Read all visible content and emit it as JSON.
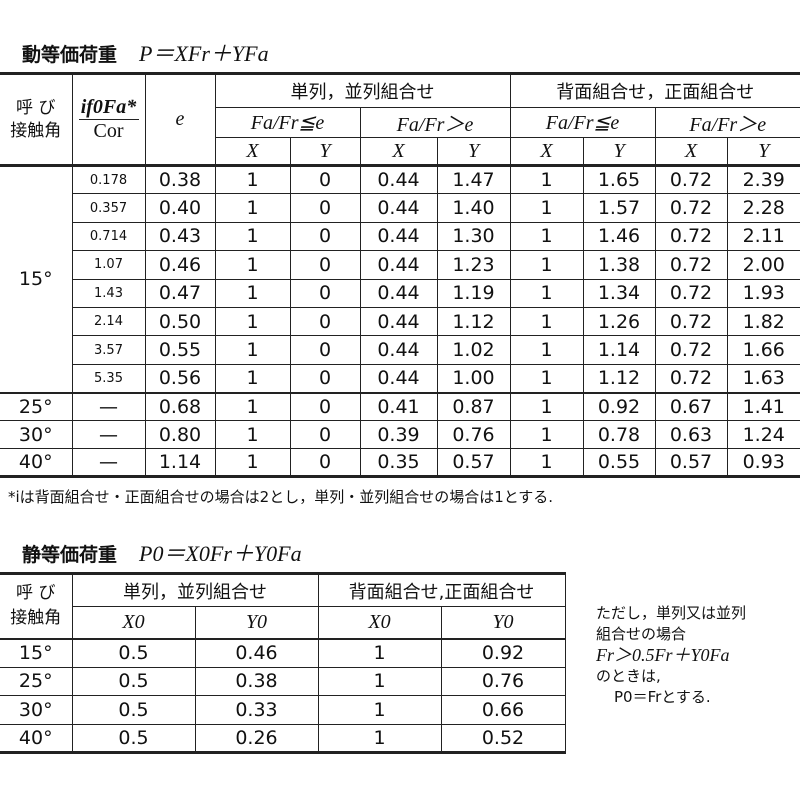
{
  "dynamic": {
    "title": "動等価荷重",
    "formula": "P＝XFr＋YFa",
    "header": {
      "contact_angle": [
        "呼 び",
        "接触角"
      ],
      "ratio_num": "if0Fa*",
      "ratio_den": "Cor",
      "e": "e",
      "group_single": "単列，並列組合せ",
      "group_back": "背面組合せ，正面組合せ",
      "cond_le": "Fa/Fr≦e",
      "cond_gt": "Fa/Fr＞e",
      "x": "X",
      "y": "Y"
    },
    "angle_15": "15°",
    "rows_15": [
      [
        "0.178",
        "0.38",
        "1",
        "0",
        "0.44",
        "1.47",
        "1",
        "1.65",
        "0.72",
        "2.39"
      ],
      [
        "0.357",
        "0.40",
        "1",
        "0",
        "0.44",
        "1.40",
        "1",
        "1.57",
        "0.72",
        "2.28"
      ],
      [
        "0.714",
        "0.43",
        "1",
        "0",
        "0.44",
        "1.30",
        "1",
        "1.46",
        "0.72",
        "2.11"
      ],
      [
        "1.07",
        "0.46",
        "1",
        "0",
        "0.44",
        "1.23",
        "1",
        "1.38",
        "0.72",
        "2.00"
      ],
      [
        "1.43",
        "0.47",
        "1",
        "0",
        "0.44",
        "1.19",
        "1",
        "1.34",
        "0.72",
        "1.93"
      ],
      [
        "2.14",
        "0.50",
        "1",
        "0",
        "0.44",
        "1.12",
        "1",
        "1.26",
        "0.72",
        "1.82"
      ],
      [
        "3.57",
        "0.55",
        "1",
        "0",
        "0.44",
        "1.02",
        "1",
        "1.14",
        "0.72",
        "1.66"
      ],
      [
        "5.35",
        "0.56",
        "1",
        "0",
        "0.44",
        "1.00",
        "1",
        "1.12",
        "0.72",
        "1.63"
      ]
    ],
    "rows_other": [
      [
        "25°",
        "—",
        "0.68",
        "1",
        "0",
        "0.41",
        "0.87",
        "1",
        "0.92",
        "0.67",
        "1.41"
      ],
      [
        "30°",
        "—",
        "0.80",
        "1",
        "0",
        "0.39",
        "0.76",
        "1",
        "0.78",
        "0.63",
        "1.24"
      ],
      [
        "40°",
        "—",
        "1.14",
        "1",
        "0",
        "0.35",
        "0.57",
        "1",
        "0.55",
        "0.57",
        "0.93"
      ]
    ],
    "footnote": "*iは背面組合せ・正面組合せの場合は2とし，単列・並列組合せの場合は1とする."
  },
  "static": {
    "title": "静等価荷重",
    "formula": "P0＝X0Fr＋Y0Fa",
    "header": {
      "contact_angle": [
        "呼 び",
        "接触角"
      ],
      "group_single": "単列，並列組合せ",
      "group_back": "背面組合せ,正面組合せ",
      "x0": "X0",
      "y0": "Y0"
    },
    "rows": [
      [
        "15°",
        "0.5",
        "0.46",
        "1",
        "0.92"
      ],
      [
        "25°",
        "0.5",
        "0.38",
        "1",
        "0.76"
      ],
      [
        "30°",
        "0.5",
        "0.33",
        "1",
        "0.66"
      ],
      [
        "40°",
        "0.5",
        "0.26",
        "1",
        "0.52"
      ]
    ],
    "note": [
      "ただし，単列又は並列",
      "組合せの場合",
      "Fr＞0.5Fr＋Y0Fa",
      "のときは,",
      "P0＝Frとする."
    ]
  }
}
